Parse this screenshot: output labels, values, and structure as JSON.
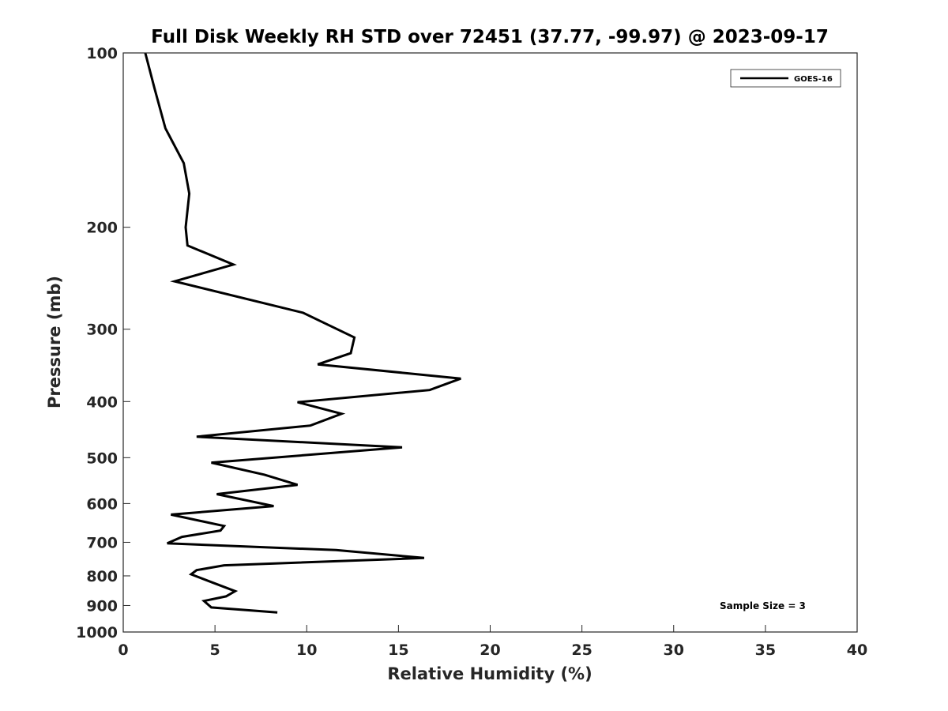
{
  "chart_data": {
    "type": "line",
    "title": "Full Disk Weekly RH STD over 72451 (37.77, -99.97) @ 2023-09-17",
    "xlabel": "Relative Humidity (%)",
    "ylabel": "Pressure (mb)",
    "xlim": [
      0,
      40
    ],
    "ylim": [
      100,
      1000
    ],
    "y_scale": "log",
    "y_reversed": true,
    "x_ticks": [
      0,
      5,
      10,
      15,
      20,
      25,
      30,
      35,
      40
    ],
    "x_tick_labels": [
      "0",
      "5",
      "10",
      "15",
      "20",
      "25",
      "30",
      "35",
      "40"
    ],
    "y_ticks": [
      100,
      200,
      300,
      400,
      500,
      600,
      700,
      800,
      900,
      1000
    ],
    "y_tick_labels": [
      "100",
      "200",
      "300",
      "400",
      "500",
      "600",
      "700",
      "800",
      "900",
      "1000"
    ],
    "grid": false,
    "legend_position": "top-right",
    "annotation": "Sample Size = 3",
    "series": [
      {
        "name": "GOES-16",
        "color": "#000000",
        "points": [
          [
            1.2,
            100
          ],
          [
            1.7,
            115
          ],
          [
            2.3,
            135
          ],
          [
            3.3,
            155
          ],
          [
            3.6,
            175
          ],
          [
            3.4,
            200
          ],
          [
            3.5,
            215
          ],
          [
            6.0,
            232
          ],
          [
            2.8,
            248
          ],
          [
            9.8,
            281
          ],
          [
            12.6,
            310
          ],
          [
            12.4,
            330
          ],
          [
            10.6,
            345
          ],
          [
            18.4,
            365
          ],
          [
            16.7,
            382
          ],
          [
            9.5,
            401
          ],
          [
            11.9,
            420
          ],
          [
            10.2,
            440
          ],
          [
            4.0,
            460
          ],
          [
            15.2,
            480
          ],
          [
            4.8,
            510
          ],
          [
            7.7,
            535
          ],
          [
            9.5,
            557
          ],
          [
            5.1,
            578
          ],
          [
            8.2,
            606
          ],
          [
            2.6,
            627
          ],
          [
            5.5,
            656
          ],
          [
            5.3,
            668
          ],
          [
            3.2,
            685
          ],
          [
            2.4,
            703
          ],
          [
            11.6,
            722
          ],
          [
            16.4,
            745
          ],
          [
            5.5,
            767
          ],
          [
            4.0,
            782
          ],
          [
            3.7,
            795
          ],
          [
            4.8,
            820
          ],
          [
            6.1,
            850
          ],
          [
            5.6,
            868
          ],
          [
            4.4,
            884
          ],
          [
            4.8,
            907
          ],
          [
            8.4,
            925
          ]
        ]
      }
    ]
  }
}
